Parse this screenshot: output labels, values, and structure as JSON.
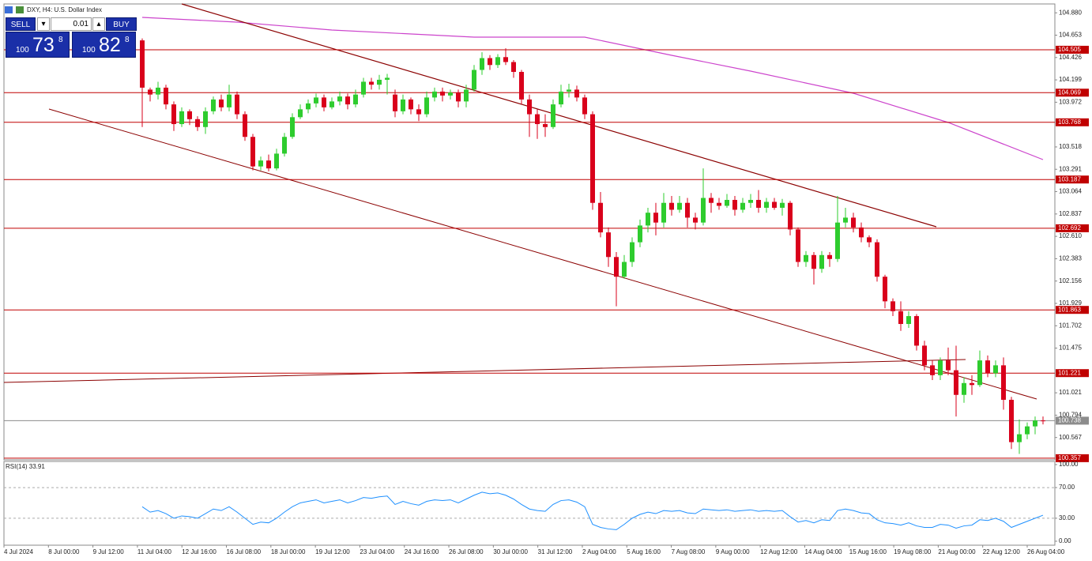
{
  "chart_data": {
    "type": "candlestick",
    "title": "DXY, H4:  U.S. Dollar Index",
    "candles": [
      [
        104.6,
        104.62,
        103.72,
        104.12
      ],
      [
        104.1,
        104.12,
        103.98,
        104.05
      ],
      [
        104.05,
        104.18,
        104.0,
        104.12
      ],
      [
        104.12,
        104.15,
        103.9,
        103.95
      ],
      [
        103.95,
        103.98,
        103.68,
        103.75
      ],
      [
        103.75,
        103.92,
        103.72,
        103.88
      ],
      [
        103.88,
        103.9,
        103.74,
        103.8
      ],
      [
        103.8,
        103.83,
        103.68,
        103.72
      ],
      [
        103.72,
        103.92,
        103.65,
        103.88
      ],
      [
        103.88,
        104.03,
        103.85,
        104.0
      ],
      [
        104.0,
        104.05,
        103.88,
        103.92
      ],
      [
        103.92,
        104.15,
        103.88,
        104.05
      ],
      [
        104.05,
        104.08,
        103.8,
        103.85
      ],
      [
        103.85,
        103.88,
        103.58,
        103.62
      ],
      [
        103.62,
        103.65,
        103.28,
        103.32
      ],
      [
        103.32,
        103.42,
        103.28,
        103.38
      ],
      [
        103.38,
        103.44,
        103.27,
        103.3
      ],
      [
        103.3,
        103.5,
        103.28,
        103.45
      ],
      [
        103.45,
        103.66,
        103.42,
        103.62
      ],
      [
        103.62,
        103.86,
        103.6,
        103.82
      ],
      [
        103.82,
        103.95,
        103.8,
        103.9
      ],
      [
        103.9,
        104.0,
        103.86,
        103.96
      ],
      [
        103.96,
        104.06,
        103.92,
        104.02
      ],
      [
        104.02,
        104.05,
        103.88,
        103.92
      ],
      [
        103.92,
        104.02,
        103.9,
        103.98
      ],
      [
        103.98,
        104.08,
        103.94,
        104.03
      ],
      [
        104.03,
        104.06,
        103.9,
        103.95
      ],
      [
        103.95,
        104.1,
        103.92,
        104.05
      ],
      [
        104.05,
        104.22,
        104.02,
        104.18
      ],
      [
        104.18,
        104.22,
        104.1,
        104.15
      ],
      [
        104.15,
        104.25,
        104.1,
        104.2
      ],
      [
        104.2,
        104.26,
        104.05,
        104.22
      ],
      [
        104.05,
        104.1,
        103.82,
        103.88
      ],
      [
        103.88,
        104.05,
        103.85,
        104.0
      ],
      [
        104.0,
        104.02,
        103.85,
        103.9
      ],
      [
        103.9,
        103.95,
        103.78,
        103.85
      ],
      [
        103.85,
        104.08,
        103.82,
        104.02
      ],
      [
        104.02,
        104.12,
        103.98,
        104.08
      ],
      [
        104.08,
        104.12,
        103.98,
        104.04
      ],
      [
        104.04,
        104.1,
        104.0,
        104.07
      ],
      [
        104.07,
        104.1,
        103.92,
        103.98
      ],
      [
        103.98,
        104.15,
        103.92,
        104.1
      ],
      [
        104.1,
        104.35,
        104.08,
        104.3
      ],
      [
        104.3,
        104.48,
        104.25,
        104.42
      ],
      [
        104.42,
        104.45,
        104.3,
        104.35
      ],
      [
        104.35,
        104.46,
        104.32,
        104.43
      ],
      [
        104.43,
        104.52,
        104.35,
        104.38
      ],
      [
        104.38,
        104.4,
        104.22,
        104.28
      ],
      [
        104.28,
        104.3,
        103.95,
        104.0
      ],
      [
        104.0,
        104.05,
        103.62,
        103.85
      ],
      [
        103.85,
        103.9,
        103.6,
        103.75
      ],
      [
        103.75,
        103.85,
        103.62,
        103.72
      ],
      [
        103.72,
        104.0,
        103.7,
        103.95
      ],
      [
        103.95,
        104.15,
        103.92,
        104.08
      ],
      [
        104.08,
        104.16,
        104.02,
        104.1
      ],
      [
        104.1,
        104.14,
        103.98,
        104.02
      ],
      [
        104.02,
        104.05,
        103.8,
        103.85
      ],
      [
        103.85,
        103.88,
        102.88,
        102.95
      ],
      [
        102.95,
        103.06,
        102.6,
        102.65
      ],
      [
        102.65,
        102.7,
        102.3,
        102.4
      ],
      [
        102.4,
        102.45,
        101.9,
        102.2
      ],
      [
        102.2,
        102.42,
        102.18,
        102.35
      ],
      [
        102.35,
        102.6,
        102.3,
        102.55
      ],
      [
        102.55,
        102.78,
        102.5,
        102.72
      ],
      [
        102.72,
        102.9,
        102.65,
        102.85
      ],
      [
        102.85,
        102.95,
        102.62,
        102.75
      ],
      [
        102.75,
        103.05,
        102.7,
        102.95
      ],
      [
        102.95,
        103.02,
        102.82,
        102.88
      ],
      [
        102.88,
        103.02,
        102.85,
        102.95
      ],
      [
        102.95,
        103.0,
        102.7,
        102.8
      ],
      [
        102.8,
        102.85,
        102.68,
        102.75
      ],
      [
        102.75,
        103.3,
        102.72,
        103.0
      ],
      [
        103.0,
        103.05,
        102.85,
        102.95
      ],
      [
        102.95,
        103.0,
        102.88,
        102.92
      ],
      [
        102.92,
        103.04,
        102.9,
        102.98
      ],
      [
        102.98,
        103.02,
        102.82,
        102.88
      ],
      [
        102.88,
        103.0,
        102.85,
        102.95
      ],
      [
        102.95,
        103.04,
        102.9,
        102.98
      ],
      [
        102.98,
        103.08,
        102.85,
        102.9
      ],
      [
        102.9,
        103.0,
        102.85,
        102.96
      ],
      [
        102.96,
        103.0,
        102.88,
        102.9
      ],
      [
        102.9,
        102.99,
        102.82,
        102.95
      ],
      [
        102.95,
        102.97,
        102.62,
        102.68
      ],
      [
        102.68,
        102.7,
        102.3,
        102.35
      ],
      [
        102.35,
        102.46,
        102.3,
        102.42
      ],
      [
        102.42,
        102.45,
        102.12,
        102.28
      ],
      [
        102.28,
        102.46,
        102.24,
        102.42
      ],
      [
        102.42,
        102.45,
        102.3,
        102.38
      ],
      [
        102.38,
        103.02,
        102.35,
        102.75
      ],
      [
        102.75,
        102.9,
        102.7,
        102.8
      ],
      [
        102.8,
        102.85,
        102.65,
        102.7
      ],
      [
        102.7,
        102.75,
        102.55,
        102.6
      ],
      [
        102.6,
        102.62,
        102.5,
        102.55
      ],
      [
        102.55,
        102.58,
        102.15,
        102.2
      ],
      [
        102.2,
        102.22,
        101.88,
        101.95
      ],
      [
        101.95,
        101.98,
        101.8,
        101.85
      ],
      [
        101.85,
        101.95,
        101.65,
        101.72
      ],
      [
        101.72,
        101.85,
        101.68,
        101.8
      ],
      [
        101.8,
        101.82,
        101.45,
        101.5
      ],
      [
        101.5,
        101.55,
        101.25,
        101.3
      ],
      [
        101.3,
        101.35,
        101.15,
        101.2
      ],
      [
        101.2,
        101.38,
        101.15,
        101.35
      ],
      [
        101.35,
        101.48,
        101.2,
        101.25
      ],
      [
        101.25,
        101.5,
        100.78,
        101.0
      ],
      [
        101.0,
        101.18,
        100.92,
        101.12
      ],
      [
        101.12,
        101.2,
        101.0,
        101.1
      ],
      [
        101.1,
        101.45,
        101.08,
        101.35
      ],
      [
        101.35,
        101.4,
        101.18,
        101.22
      ],
      [
        101.22,
        101.35,
        101.18,
        101.3
      ],
      [
        101.3,
        101.38,
        100.85,
        100.95
      ],
      [
        100.95,
        100.98,
        100.45,
        100.52
      ],
      [
        100.52,
        100.75,
        100.4,
        100.6
      ],
      [
        100.6,
        100.72,
        100.55,
        100.68
      ],
      [
        100.68,
        100.78,
        100.6,
        100.74
      ],
      [
        100.74,
        100.78,
        100.7,
        100.738
      ]
    ],
    "up_color": "#2ecc2e",
    "down_color": "#d9001b",
    "ylim": [
      100.34,
      104.97
    ],
    "yticks": [
      {
        "value": 104.88,
        "label": "104.880"
      },
      104.653,
      104.426,
      104.199,
      103.972,
      103.518,
      103.291,
      103.064,
      102.837,
      {
        "value": 102.61,
        "label": "102.610"
      },
      102.383,
      102.156,
      101.929,
      101.702,
      101.475,
      101.021,
      100.794,
      100.567
    ],
    "levels": [
      {
        "value": 104.505,
        "color": "#c00000"
      },
      {
        "value": 104.069,
        "color": "#c00000"
      },
      {
        "value": 103.768,
        "color": "#c00000"
      },
      {
        "value": 103.187,
        "color": "#c00000"
      },
      {
        "value": 102.692,
        "color": "#c00000"
      },
      {
        "value": 101.863,
        "color": "#c00000"
      },
      {
        "value": 101.221,
        "color": "#c00000"
      },
      {
        "value": 100.738,
        "color": "#8c8c8c"
      },
      {
        "value": 100.357,
        "color": "#c00000"
      }
    ],
    "x_labels": [
      "4 Jul 2024",
      "8 Jul 00:00",
      "9 Jul 12:00",
      "11 Jul 04:00",
      "12 Jul 16:00",
      "16 Jul 08:00",
      "18 Jul 00:00",
      "19 Jul 12:00",
      "23 Jul 04:00",
      "24 Jul 16:00",
      "26 Jul 08:00",
      "30 Jul 00:00",
      "31 Jul 12:00",
      "2 Aug 04:00",
      "5 Aug 16:00",
      "7 Aug 08:00",
      "9 Aug 00:00",
      "12 Aug 12:00",
      "14 Aug 04:00",
      "15 Aug 16:00",
      "19 Aug 08:00",
      "21 Aug 00:00",
      "22 Aug 12:00",
      "26 Aug 04:00"
    ],
    "rsi": {
      "label": "RSI(14) 33.91",
      "color": "#1e90ff",
      "values": [
        45,
        38,
        40,
        36,
        30,
        33,
        32,
        30,
        36,
        42,
        40,
        45,
        38,
        30,
        22,
        25,
        24,
        30,
        38,
        45,
        50,
        52,
        54,
        50,
        52,
        54,
        50,
        53,
        57,
        56,
        58,
        59,
        48,
        52,
        49,
        47,
        52,
        54,
        53,
        54,
        50,
        55,
        60,
        64,
        62,
        63,
        60,
        55,
        48,
        42,
        40,
        39,
        48,
        53,
        54,
        51,
        45,
        22,
        18,
        16,
        15,
        22,
        30,
        35,
        38,
        36,
        40,
        39,
        40,
        37,
        36,
        42,
        41,
        40,
        41,
        39,
        40,
        41,
        39,
        40,
        39,
        40,
        32,
        25,
        27,
        24,
        28,
        27,
        40,
        42,
        40,
        37,
        36,
        28,
        24,
        23,
        21,
        24,
        20,
        18,
        18,
        22,
        21,
        17,
        20,
        21,
        28,
        27,
        30,
        26,
        18,
        22,
        26,
        30,
        33.91
      ],
      "ylim": [
        -5.2,
        104.1
      ],
      "yticks": [
        {
          "value": 100,
          "label": "100.00"
        },
        {
          "value": 70,
          "label": "70.00"
        },
        {
          "value": 30,
          "label": "30.00"
        },
        {
          "value": 0,
          "label": "0.00"
        }
      ],
      "dashed_levels": [
        70,
        30
      ]
    }
  },
  "trade_panel": {
    "sell": "SELL",
    "buy": "BUY",
    "lot": "0.01",
    "sell_price": {
      "prefix": "100",
      "big": "73",
      "small": "8"
    },
    "buy_price": {
      "prefix": "100",
      "big": "82",
      "small": "8"
    }
  }
}
